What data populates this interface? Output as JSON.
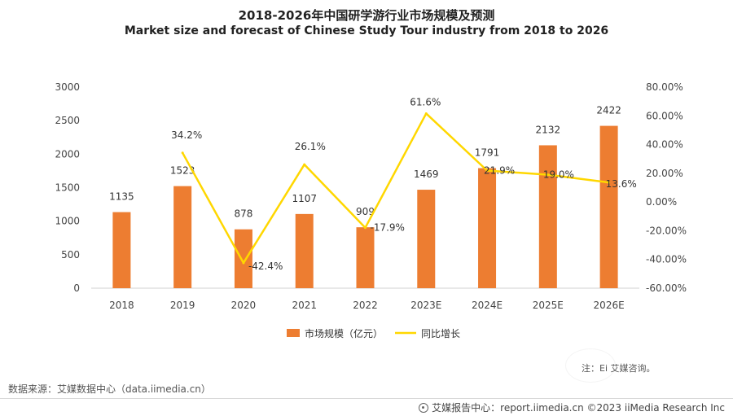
{
  "header": {
    "title_zh": "2018-2026年中国研学游行业市场规模及预测",
    "title_en": "Market size and forecast of Chinese Study Tour industry from 2018 to 2026"
  },
  "chart_data": {
    "type": "bar",
    "title": "2018-2026年中国研学游行业市场规模及预测",
    "subtitle": "Market size and forecast of Chinese Study Tour industry from 2018 to 2026",
    "categories": [
      "2018",
      "2019",
      "2020",
      "2021",
      "2022",
      "2023E",
      "2024E",
      "2025E",
      "2026E"
    ],
    "series": [
      {
        "name": "市场规模（亿元）",
        "type": "bar",
        "axis": "left",
        "color": "#ED7D31",
        "values": [
          1135,
          1523,
          878,
          1107,
          909,
          1469,
          1791,
          2132,
          2422
        ],
        "labels": [
          "1135",
          "1523",
          "878",
          "1107",
          "909",
          "1469",
          "1791",
          "2132",
          "2422"
        ]
      },
      {
        "name": "同比增长",
        "type": "line",
        "axis": "right",
        "color": "#FFD700",
        "values": [
          null,
          34.2,
          -42.4,
          26.1,
          -17.9,
          61.6,
          21.9,
          19.0,
          13.6
        ],
        "labels": [
          "",
          "34.2%",
          "-42.4%",
          "26.1%",
          "-17.9%",
          "61.6%",
          "21.9%",
          "19.0%",
          "13.6%"
        ]
      }
    ],
    "y_left": {
      "ylim": [
        0,
        3000
      ],
      "ticks": [
        "0",
        "500",
        "1000",
        "1500",
        "2000",
        "2500",
        "3000"
      ]
    },
    "y_right": {
      "ylim": [
        -60,
        80
      ],
      "ticks": [
        "-60.00%",
        "-40.00%",
        "-20.00%",
        "0.00%",
        "20.00%",
        "40.00%",
        "60.00%",
        "80.00%"
      ]
    },
    "grid": false,
    "legend_position": "bottom"
  },
  "footer": {
    "source": "数据来源：艾媒数据中心（data.iimedia.cn）",
    "note": "注：Ei 艾媒咨询。",
    "credit": "艾媒报告中心：report.iimedia.cn  ©2023  iiMedia Research  Inc"
  }
}
